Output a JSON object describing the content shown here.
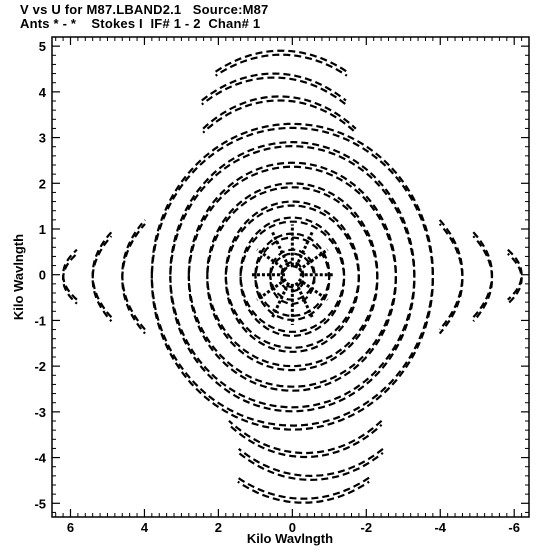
{
  "header": {
    "line1": "V vs U for M87.LBAND2.1   Source:M87",
    "line2": "Ants * - *    Stokes I  IF# 1 - 2  Chan# 1"
  },
  "chart_data": {
    "type": "scatter",
    "xlabel": "Kilo Wavlngth",
    "ylabel": "Kilo Wavlngth",
    "xlim": [
      6.5,
      -6.4
    ],
    "ylim": [
      -5.3,
      5.2
    ],
    "xticks": [
      6,
      4,
      2,
      0,
      -2,
      -4,
      -6
    ],
    "yticks": [
      -5,
      -4,
      -3,
      -2,
      -1,
      0,
      1,
      2,
      3,
      4,
      5
    ],
    "xtick_labels": [
      "6",
      "4",
      "2",
      "0",
      "-2",
      "-4",
      "-6"
    ],
    "ytick_labels": [
      "-5",
      "-4",
      "-3",
      "-2",
      "-1",
      "0",
      "1",
      "2",
      "3",
      "4",
      "5"
    ],
    "marker_color": "#000000",
    "series": [
      {
        "tracks": [
          {
            "center": [
              0,
              0
            ],
            "rx": 0.3,
            "ry": 0.28,
            "start_deg": 0,
            "end_deg": 360
          },
          {
            "center": [
              0,
              0
            ],
            "rx": 0.6,
            "ry": 0.55,
            "start_deg": 0,
            "end_deg": 360
          },
          {
            "center": [
              0,
              0
            ],
            "rx": 1.0,
            "ry": 0.9,
            "start_deg": 0,
            "end_deg": 360
          },
          {
            "center": [
              0,
              0
            ],
            "rx": 1.4,
            "ry": 1.25,
            "start_deg": 0,
            "end_deg": 360
          },
          {
            "center": [
              0,
              0
            ],
            "rx": 1.8,
            "ry": 1.6,
            "start_deg": 0,
            "end_deg": 360
          },
          {
            "center": [
              0,
              0
            ],
            "rx": 2.3,
            "ry": 2.0,
            "start_deg": 0,
            "end_deg": 360
          },
          {
            "center": [
              0,
              0
            ],
            "rx": 2.8,
            "ry": 2.45,
            "start_deg": 0,
            "end_deg": 360
          },
          {
            "center": [
              0,
              0
            ],
            "rx": 3.3,
            "ry": 2.9,
            "start_deg": 0,
            "end_deg": 360
          },
          {
            "center": [
              0,
              0
            ],
            "rx": 3.8,
            "ry": 3.3,
            "start_deg": 0,
            "end_deg": 360
          },
          {
            "center": [
              0.35,
              0
            ],
            "rx": 3.6,
            "ry": 3.9,
            "start_deg": 55,
            "end_deg": 125
          },
          {
            "center": [
              -0.35,
              0
            ],
            "rx": 3.6,
            "ry": 3.9,
            "start_deg": 235,
            "end_deg": 305
          },
          {
            "center": [
              0.5,
              0
            ],
            "rx": 3.9,
            "ry": 4.4,
            "start_deg": 60,
            "end_deg": 120
          },
          {
            "center": [
              -0.5,
              0
            ],
            "rx": 3.9,
            "ry": 4.4,
            "start_deg": 240,
            "end_deg": 300
          },
          {
            "center": [
              0.3,
              0
            ],
            "rx": 4.2,
            "ry": 4.9,
            "start_deg": 65,
            "end_deg": 115
          },
          {
            "center": [
              -0.3,
              0
            ],
            "rx": 4.2,
            "ry": 4.9,
            "start_deg": 245,
            "end_deg": 295
          },
          {
            "center": [
              0,
              0
            ],
            "rx": 4.6,
            "ry": 2.4,
            "start_deg": 150,
            "end_deg": 210
          },
          {
            "center": [
              0,
              0
            ],
            "rx": 4.6,
            "ry": 2.4,
            "start_deg": -30,
            "end_deg": 30
          },
          {
            "center": [
              0,
              0
            ],
            "rx": 5.4,
            "ry": 2.2,
            "start_deg": 155,
            "end_deg": 205
          },
          {
            "center": [
              0,
              0
            ],
            "rx": 5.4,
            "ry": 2.2,
            "start_deg": -25,
            "end_deg": 25
          },
          {
            "center": [
              0,
              0
            ],
            "rx": 6.2,
            "ry": 1.6,
            "start_deg": 160,
            "end_deg": 200
          },
          {
            "center": [
              0,
              0
            ],
            "rx": 6.2,
            "ry": 1.6,
            "start_deg": -20,
            "end_deg": 20
          }
        ],
        "spokes_deg": [
          0,
          30,
          60,
          90,
          120,
          150,
          180,
          210,
          240,
          270,
          300,
          330
        ],
        "spoke_range": [
          0.2,
          1.1
        ]
      }
    ]
  }
}
